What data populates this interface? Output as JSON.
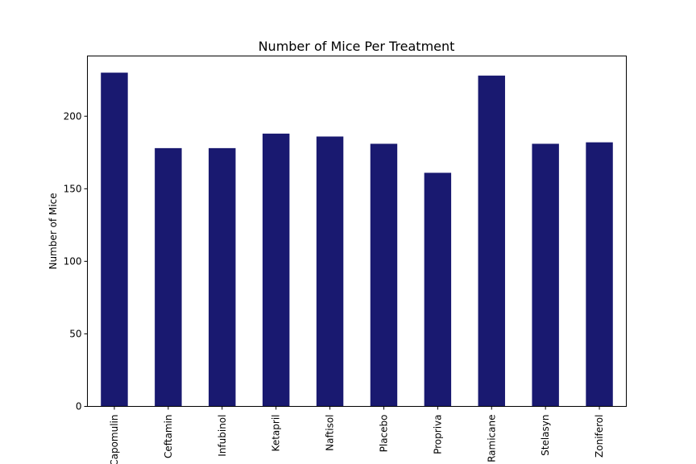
{
  "chart_data": {
    "type": "bar",
    "title": "Number of Mice Per Treatment",
    "xlabel": "",
    "ylabel": "Number of Mice",
    "categories": [
      "Capomulin",
      "Ceftamin",
      "Infubinol",
      "Ketapril",
      "Naftisol",
      "Placebo",
      "Propriva",
      "Ramicane",
      "Stelasyn",
      "Zoniferol"
    ],
    "values": [
      230,
      178,
      178,
      188,
      186,
      181,
      161,
      228,
      181,
      182
    ],
    "ylim": [
      0,
      241.5
    ],
    "yticks": [
      0,
      50,
      100,
      150,
      200
    ],
    "grid": false,
    "legend": "none",
    "bar_color": "#191970"
  }
}
